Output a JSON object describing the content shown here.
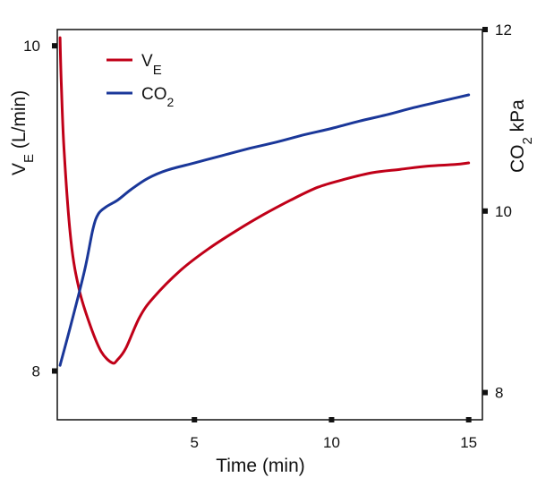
{
  "chart_data": {
    "type": "line",
    "xlabel": "Time (min)",
    "ylabel_left": {
      "main": "V",
      "sub": "E",
      "suffix": " (L/min)"
    },
    "ylabel_right": {
      "main": "CO",
      "sub": "2",
      "suffix": " kPa"
    },
    "xlim": [
      0,
      15.5
    ],
    "ylim_left": [
      7.7,
      10.1
    ],
    "ylim_right": [
      7.7,
      12.0
    ],
    "x_ticks": [
      5,
      10,
      15
    ],
    "x_tick_labels": [
      "5",
      "10",
      "15"
    ],
    "left_ticks": [
      8,
      10
    ],
    "left_tick_labels": [
      "8",
      "10"
    ],
    "right_ticks": [
      8,
      10,
      12
    ],
    "right_tick_labels": [
      "8",
      "10",
      "12"
    ],
    "legend_position": "top-left",
    "series": [
      {
        "name": "VE",
        "label_main": "V",
        "label_sub": "E",
        "axis": "left",
        "color": "#c00018",
        "x": [
          0.1,
          0.15,
          0.25,
          0.5,
          0.8,
          1.2,
          1.6,
          2.0,
          2.2,
          2.5,
          3.0,
          3.5,
          4.5,
          5.5,
          6.5,
          7.5,
          8.5,
          9.5,
          10.5,
          11.5,
          12.5,
          13.5,
          14.5,
          15.0
        ],
        "values": [
          10.05,
          9.75,
          9.35,
          8.8,
          8.5,
          8.28,
          8.12,
          8.05,
          8.07,
          8.14,
          8.33,
          8.45,
          8.62,
          8.75,
          8.86,
          8.96,
          9.05,
          9.13,
          9.18,
          9.22,
          9.24,
          9.26,
          9.27,
          9.28
        ]
      },
      {
        "name": "CO2",
        "label_main": "CO",
        "label_sub": "2",
        "axis": "right",
        "color": "#1a3799",
        "x": [
          0.1,
          0.5,
          1.0,
          1.3,
          1.5,
          1.8,
          2.2,
          2.7,
          3.3,
          4.0,
          5.0,
          6.0,
          7.0,
          8.0,
          9.0,
          10.0,
          11.0,
          12.0,
          13.0,
          14.0,
          15.0
        ],
        "values": [
          8.3,
          8.75,
          9.35,
          9.8,
          9.97,
          10.05,
          10.12,
          10.24,
          10.36,
          10.45,
          10.53,
          10.61,
          10.69,
          10.76,
          10.84,
          10.91,
          10.99,
          11.06,
          11.14,
          11.21,
          11.28
        ]
      }
    ]
  }
}
